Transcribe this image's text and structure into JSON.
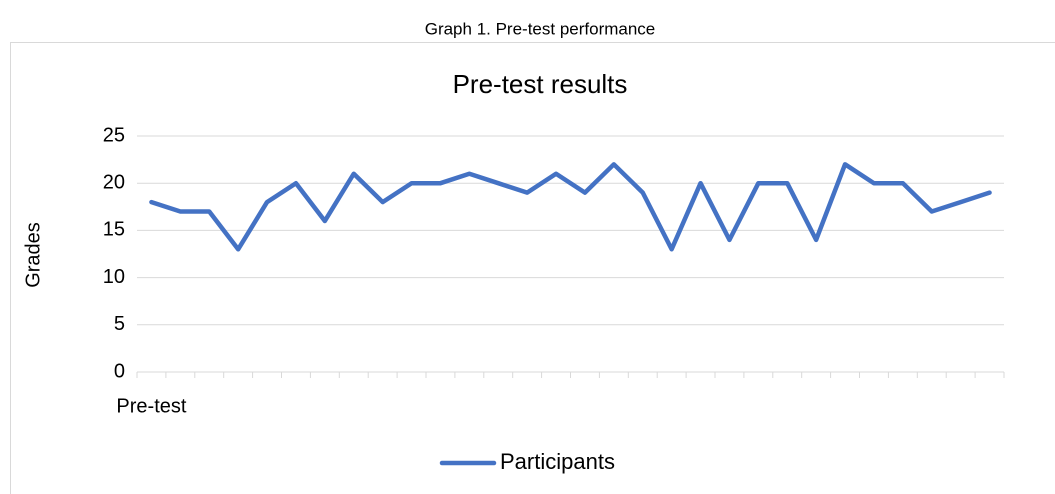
{
  "caption": "Graph 1. Pre-test performance",
  "chart_data": {
    "type": "line",
    "title": "Pre-test results",
    "y_label": "Grades",
    "categories": [
      "Pre-test",
      null,
      null,
      null,
      null,
      null,
      null,
      null,
      null,
      null,
      null,
      null,
      null,
      null,
      null,
      null,
      null,
      null,
      null,
      null,
      null,
      null,
      null,
      null,
      null,
      null,
      null,
      null,
      null,
      null
    ],
    "series": [
      {
        "name": "Participants",
        "color": "#4472c4",
        "values": [
          18,
          17,
          17,
          13,
          18,
          20,
          16,
          21,
          18,
          20,
          20,
          21,
          20,
          19,
          21,
          19,
          22,
          19,
          13,
          20,
          14,
          20,
          20,
          14,
          22,
          20,
          20,
          17,
          18,
          19
        ]
      }
    ],
    "ylim": [
      0,
      25
    ],
    "yticks": [
      0,
      5,
      10,
      15,
      20,
      25
    ],
    "grid": true,
    "legend": "bottom"
  }
}
